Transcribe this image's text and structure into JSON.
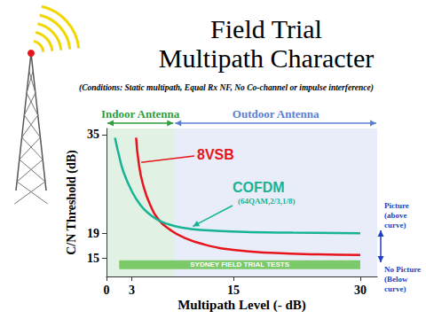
{
  "chart_data": {
    "type": "line",
    "title": "Field Trial\nMultipath Character",
    "subtitle": "(Conditions: Static multipath, Equal Rx NF, No Co-channel or impulse interference)",
    "x_label": "Multipath Level (- dB)",
    "y_label": "C/N Threshold (dB)",
    "xlim": [
      0,
      32
    ],
    "xticks": [
      0,
      3,
      15,
      30
    ],
    "ylim": [
      12,
      36
    ],
    "yticks": [
      15,
      19,
      35
    ],
    "grid": false,
    "series": [
      {
        "name": "8VSB",
        "color": "#e8141c",
        "x": [
          3.5,
          3.8,
          4.3,
          5.2,
          6.3,
          7.5,
          9,
          11.5,
          15,
          20,
          25,
          30
        ],
        "values": [
          34.5,
          30.5,
          27,
          23.5,
          21,
          19.6,
          18.4,
          17.2,
          16.3,
          15.8,
          15.6,
          15.5
        ]
      },
      {
        "name": "COFDM",
        "detail": "(64QAM,2/3,1/8)",
        "color": "#17b394",
        "x": [
          1,
          1.5,
          2,
          3,
          4,
          5,
          6.3,
          8,
          10,
          13,
          17,
          22,
          30
        ],
        "values": [
          34.5,
          31.5,
          29,
          25.8,
          23.6,
          22.2,
          21,
          20.2,
          19.7,
          19.4,
          19.2,
          19.1,
          19
        ]
      }
    ],
    "regions": [
      {
        "label": "Indoor Antenna",
        "from": 0,
        "to": 8,
        "color": "#2e9e3e"
      },
      {
        "label": "Outdoor Antenna",
        "from": 8,
        "to": 32,
        "color": "#5b7fd6"
      }
    ],
    "band": {
      "label": "SYDNEY FIELD TRIAL TESTS",
      "from": 1.5,
      "to": 30,
      "y": 13.9,
      "color": "#7cc96a"
    },
    "zones": {
      "above": [
        "Picture",
        "(above",
        "curve)"
      ],
      "below": [
        "No Picture",
        "(Below",
        "curve)"
      ],
      "color": "#1f3fbf"
    }
  }
}
